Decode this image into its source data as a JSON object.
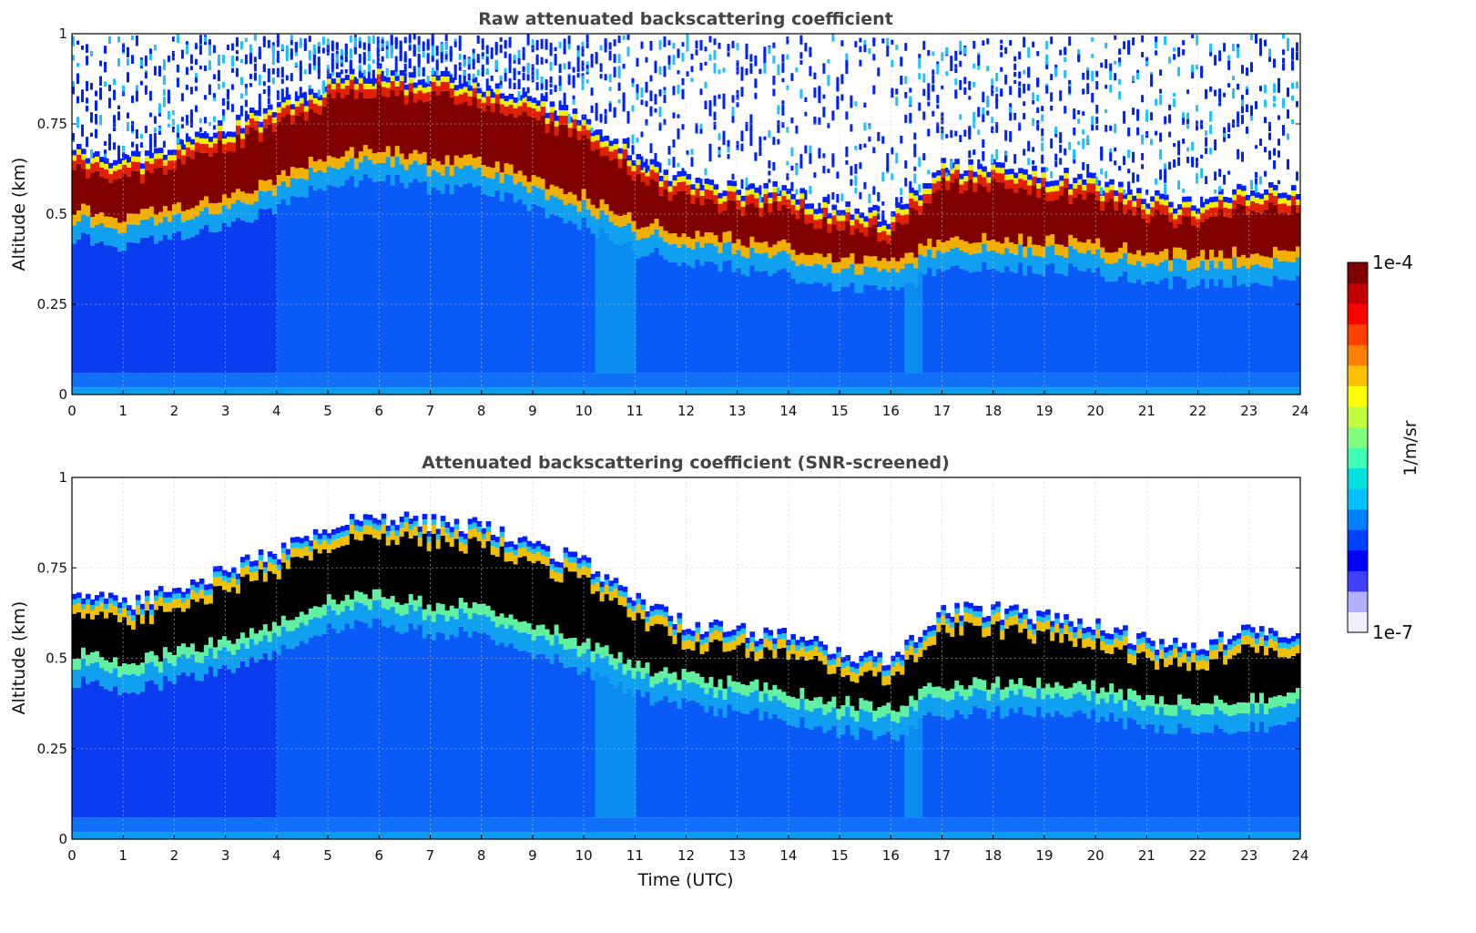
{
  "chart_data": [
    {
      "type": "heatmap",
      "title": "Raw attenuated backscattering coefficient",
      "xlabel": "",
      "ylabel": "Altitude (km)",
      "xlim": [
        0,
        24
      ],
      "ylim": [
        0,
        1
      ],
      "xticks": [
        "0",
        "1",
        "2",
        "3",
        "4",
        "5",
        "6",
        "7",
        "8",
        "9",
        "10",
        "11",
        "12",
        "13",
        "14",
        "15",
        "16",
        "17",
        "18",
        "19",
        "20",
        "21",
        "22",
        "23",
        "24"
      ],
      "yticks": [
        "0",
        "0.25",
        "0.5",
        "0.75",
        "1"
      ],
      "grid": true,
      "screened": false
    },
    {
      "type": "heatmap",
      "title": "Attenuated backscattering coefficient (SNR-screened)",
      "xlabel": "Time (UTC)",
      "ylabel": "Altitude (km)",
      "xlim": [
        0,
        24
      ],
      "ylim": [
        0,
        1
      ],
      "xticks": [
        "0",
        "1",
        "2",
        "3",
        "4",
        "5",
        "6",
        "7",
        "8",
        "9",
        "10",
        "11",
        "12",
        "13",
        "14",
        "15",
        "16",
        "17",
        "18",
        "19",
        "20",
        "21",
        "22",
        "23",
        "24"
      ],
      "yticks": [
        "0",
        "0.25",
        "0.5",
        "0.75",
        "1"
      ],
      "grid": true,
      "screened": true
    }
  ],
  "cloud_layer": {
    "hours": [
      0,
      1,
      2,
      3,
      4,
      5,
      6,
      7,
      8,
      9,
      10,
      11,
      12,
      13,
      14,
      15,
      16,
      17,
      18,
      19,
      20,
      21,
      22,
      23,
      24
    ],
    "base_km": [
      0.52,
      0.48,
      0.52,
      0.55,
      0.6,
      0.66,
      0.68,
      0.65,
      0.65,
      0.6,
      0.55,
      0.48,
      0.45,
      0.43,
      0.41,
      0.38,
      0.36,
      0.43,
      0.43,
      0.43,
      0.42,
      0.39,
      0.39,
      0.39,
      0.4
    ],
    "top_km": [
      0.68,
      0.63,
      0.68,
      0.73,
      0.78,
      0.85,
      0.88,
      0.86,
      0.85,
      0.8,
      0.75,
      0.65,
      0.58,
      0.56,
      0.55,
      0.5,
      0.48,
      0.62,
      0.62,
      0.6,
      0.58,
      0.53,
      0.52,
      0.56,
      0.56
    ]
  },
  "colorbar": {
    "max_label": "1e-4",
    "min_label": "1e-7",
    "unit_label": "1/m/sr",
    "scale": "log",
    "range": [
      1e-07,
      0.0001
    ],
    "colors": [
      "#eeeeff",
      "#b0b0ff",
      "#4040ff",
      "#0000ff",
      "#0040ff",
      "#0080ff",
      "#00c0ff",
      "#00e0e0",
      "#40ffb0",
      "#80ff80",
      "#c0ff40",
      "#ffff00",
      "#ffc000",
      "#ff8000",
      "#ff4000",
      "#ff0000",
      "#c00000",
      "#800000"
    ]
  }
}
